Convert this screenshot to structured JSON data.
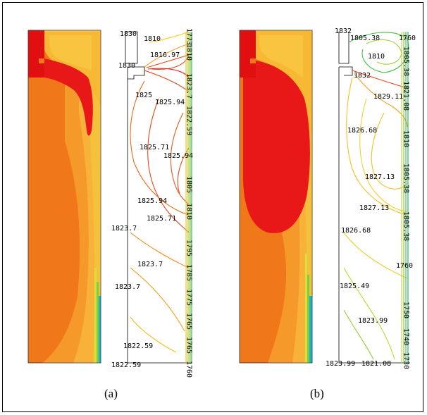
{
  "figure": {
    "panels": [
      {
        "caption": "(a)",
        "labels": {
          "top_left_a": "1830",
          "top_mid": "1810",
          "top_v1": "1773",
          "mid_a": "1816.97",
          "v_1810": "1810",
          "left_1830": "1830",
          "v_1823": "1823.7",
          "l1825": "1825",
          "l1825_94a": "1825.94",
          "v_1822": "1822.59",
          "l1825_71a": "1825.71",
          "l1825_94b": "1825.94",
          "v_1805": "1805",
          "l1825_94c": "1825.94",
          "l1825_71b": "1825.71",
          "v_1810b": "1810",
          "l1823_7a": "1823.7",
          "v_1795": "1795",
          "l1823_7b": "1823.7",
          "v_1785": "1785",
          "l1823_7c": "1823.7",
          "v_1775": "1775",
          "v_1765": "1765",
          "l1822_59a": "1822.59",
          "v_1765b": "1765",
          "v_1760": "1760",
          "l1822_59b": "1822.59"
        }
      },
      {
        "caption": "(b)",
        "labels": {
          "top_1832": "1832",
          "top_1805": "1805.38",
          "top_1760": "1760",
          "l1810": "1810",
          "v_1805a": "1805.38",
          "l1832": "1832",
          "l1829": "1829.11",
          "v_1821": "1821.08",
          "l1826_68a": "1826.68",
          "v_1810": "1810",
          "l1827_13a": "1827.13",
          "v_1805b": "1805.38",
          "l1827_13b": "1827.13",
          "l1826_68b": "1826.68",
          "v_1805c": "1805.38",
          "l1760": "1760",
          "l1825_49": "1825.49",
          "v_1750": "1750",
          "l1823_99a": "1823.99",
          "v_1740": "1740",
          "l1823_99b": "1823.99",
          "l1821_08": "1821.08",
          "v_1730": "1730"
        }
      }
    ]
  }
}
